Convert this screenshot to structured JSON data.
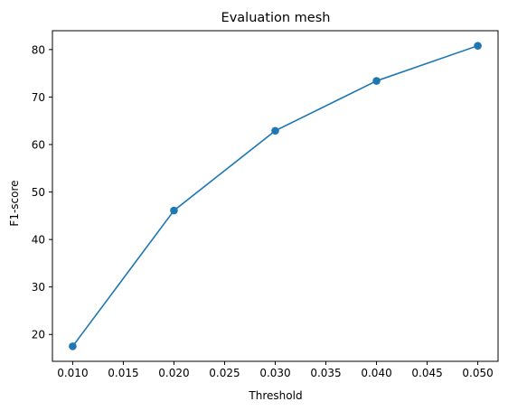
{
  "chart_data": {
    "type": "line",
    "title": "Evaluation mesh",
    "xlabel": "Threshold",
    "ylabel": "F1-score",
    "x": [
      0.01,
      0.02,
      0.03,
      0.04,
      0.05
    ],
    "series": [
      {
        "values": [
          17.5,
          46.1,
          62.9,
          73.4,
          80.8
        ],
        "color": "#1f77b4",
        "marker": "circle"
      }
    ],
    "xlim": [
      0.008,
      0.052
    ],
    "ylim": [
      14.34,
      83.97
    ],
    "xticks": [
      "0.010",
      "0.015",
      "0.020",
      "0.025",
      "0.030",
      "0.035",
      "0.040",
      "0.045",
      "0.050"
    ],
    "yticks": [
      "20",
      "30",
      "40",
      "50",
      "60",
      "70",
      "80"
    ],
    "grid": false,
    "legend": "none"
  }
}
